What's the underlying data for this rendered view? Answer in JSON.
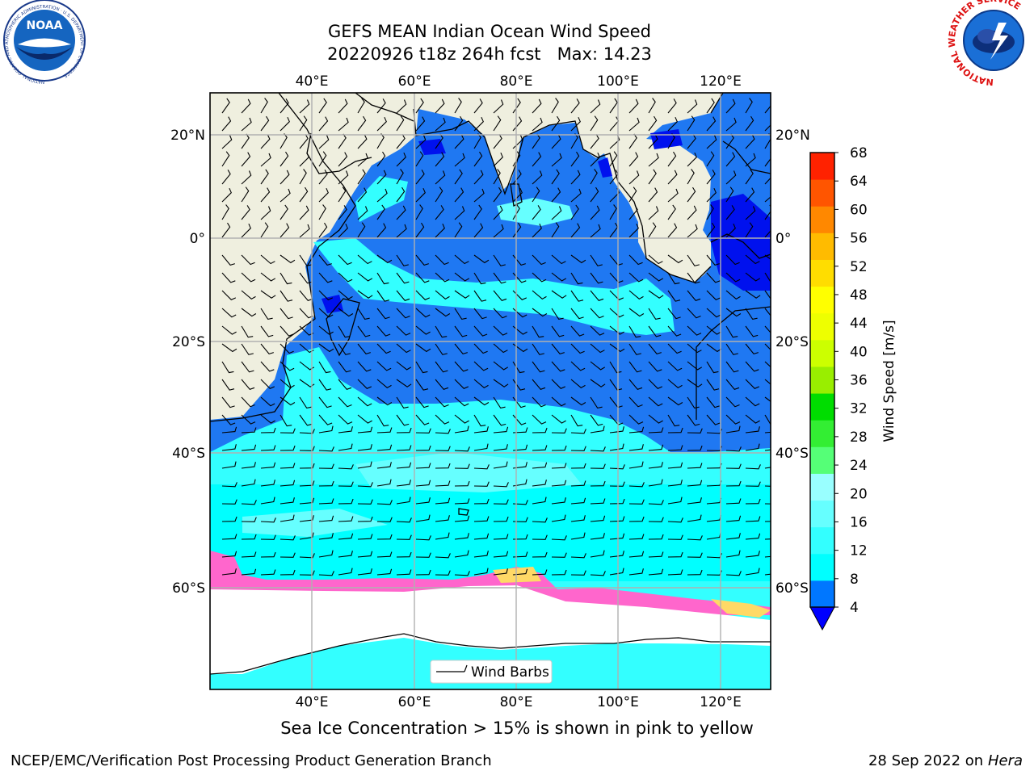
{
  "title": {
    "line1": "GEFS MEAN Indian Ocean Wind Speed",
    "line2": "20220926 t18z 264h fcst   Max: 14.23"
  },
  "caption": "Sea Ice Concentration > 15% is shown in pink to yellow",
  "footer": {
    "left": "NCEP/EMC/Verification Post Processing Product Generation Branch",
    "right_date": "28 Sep 2022 on",
    "right_host": "Hera"
  },
  "logos": {
    "left": {
      "text": "NOAA",
      "ring_text": "NATIONAL OCEANIC AND ATMOSPHERIC ADMINISTRATION · U.S. DEPARTMENT OF COMMERCE"
    },
    "right": {
      "ring_text": "NATIONAL WEATHER SERVICE"
    }
  },
  "map": {
    "lon_labels": [
      "40°E",
      "60°E",
      "80°E",
      "100°E",
      "120°E"
    ],
    "lat_labels": [
      "20°N",
      "0°",
      "20°S",
      "40°S",
      "60°S"
    ],
    "legend_label": "Wind Barbs",
    "colors": {
      "land": "#efefdf",
      "ice_pink": "#ff66cc",
      "ice_yellow": "#ffd966"
    }
  },
  "colorbar": {
    "label": "Wind Speed [m/s]",
    "ticks": [
      "4",
      "8",
      "12",
      "16",
      "20",
      "24",
      "28",
      "32",
      "36",
      "40",
      "44",
      "48",
      "52",
      "56",
      "60",
      "64",
      "68"
    ],
    "under_color": "#0000ff",
    "colors": [
      "#0077ff",
      "#00ffff",
      "#33ffff",
      "#66ffff",
      "#99ffff",
      "#55ff77",
      "#33ee33",
      "#00dd00",
      "#99ee00",
      "#ccff00",
      "#eeff00",
      "#ffff00",
      "#ffdd00",
      "#ffbb00",
      "#ff8800",
      "#ff5500",
      "#ff2200",
      "#ff0000"
    ]
  }
}
